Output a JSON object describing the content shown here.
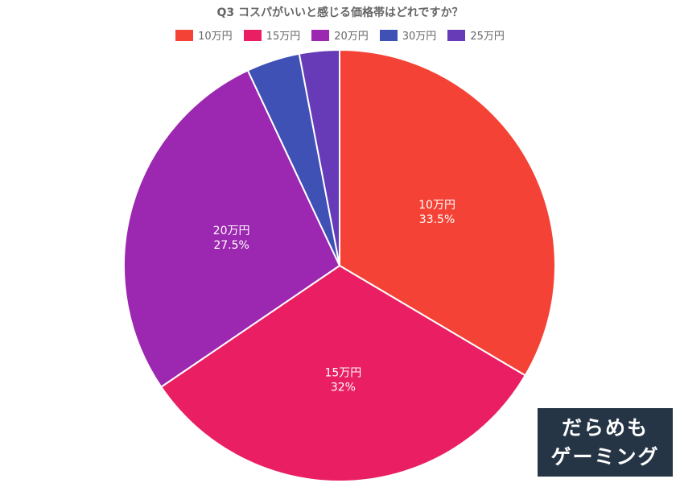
{
  "chart_data": {
    "type": "pie",
    "title": "Q3 コスパがいいと感じる価格帯はどれですか？",
    "legend_position": "top",
    "slices": [
      {
        "label": "10万円",
        "value": 33.5,
        "value_text": "33.5%",
        "color": "#f44336"
      },
      {
        "label": "15万円",
        "value": 32,
        "value_text": "32%",
        "color": "#e91e63"
      },
      {
        "label": "20万円",
        "value": 27.5,
        "value_text": "27.5%",
        "color": "#9c27b0"
      },
      {
        "label": "30万円",
        "value": 4,
        "value_text": "",
        "color": "#3f51b5"
      },
      {
        "label": "25万円",
        "value": 3,
        "value_text": "",
        "color": "#673ab7"
      }
    ]
  },
  "watermark": {
    "line1": "だらめも",
    "line2": "ゲーミング"
  }
}
